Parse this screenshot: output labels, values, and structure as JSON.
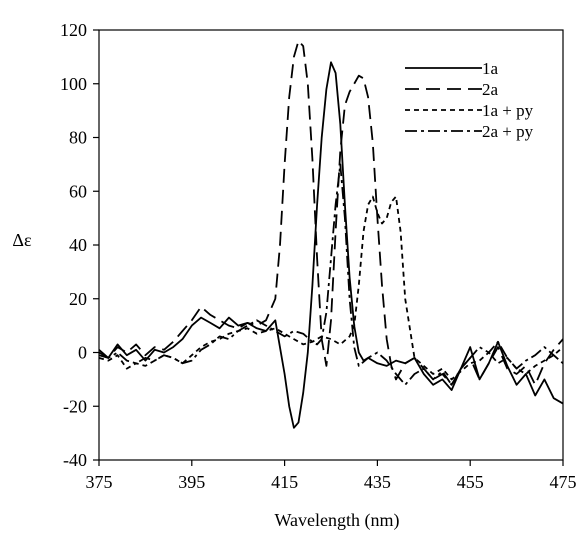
{
  "chart_data": {
    "type": "line",
    "title": "",
    "xlabel": "Wavelength (nm)",
    "ylabel": "Δε",
    "xlim": [
      375,
      475
    ],
    "ylim": [
      -40,
      120
    ],
    "xticks": [
      375,
      395,
      415,
      435,
      455,
      475
    ],
    "xtick_labels": [
      "375",
      "395",
      "415",
      "435",
      "455",
      "475"
    ],
    "yticks": [
      -40,
      -20,
      0,
      20,
      40,
      60,
      80,
      100,
      120
    ],
    "ytick_labels": [
      "-40",
      "-20",
      "0",
      "20",
      "40",
      "60",
      "80",
      "100",
      "120"
    ],
    "grid": false,
    "legend_position": "top-right",
    "series": [
      {
        "name": "1a",
        "dash": "",
        "x": [
          375,
          377,
          379,
          381,
          383,
          385,
          387,
          389,
          391,
          393,
          395,
          397,
          399,
          401,
          403,
          405,
          407,
          409,
          411,
          413,
          415,
          416,
          417,
          418,
          419,
          420,
          421,
          422,
          423,
          424,
          425,
          426,
          427,
          428,
          429,
          430,
          431,
          432,
          433,
          435,
          437,
          439,
          441,
          443,
          445,
          447,
          449,
          451,
          453,
          455,
          457,
          459,
          461,
          463,
          465,
          467,
          469,
          471,
          473,
          475
        ],
        "y": [
          0,
          -2,
          3,
          -1,
          1,
          -3,
          1,
          0,
          2,
          5,
          10,
          13,
          11,
          9,
          13,
          10,
          11,
          9,
          8,
          12,
          -8,
          -20,
          -28,
          -26,
          -15,
          0,
          25,
          55,
          80,
          98,
          108,
          104,
          85,
          55,
          28,
          10,
          0,
          -3,
          -2,
          -4,
          -5,
          -3,
          -4,
          -2,
          -8,
          -12,
          -10,
          -14,
          -6,
          2,
          -10,
          -4,
          4,
          -5,
          -12,
          -8,
          -16,
          -10,
          -17,
          -19
        ]
      },
      {
        "name": "2a",
        "dash": "14 7",
        "x": [
          375,
          377,
          379,
          381,
          383,
          385,
          387,
          389,
          391,
          393,
          395,
          397,
          399,
          401,
          403,
          405,
          407,
          409,
          411,
          413,
          414,
          415,
          416,
          417,
          418,
          419,
          420,
          421,
          422,
          423,
          424,
          425,
          426,
          427,
          428,
          429,
          430,
          431,
          432,
          433,
          434,
          435,
          436,
          437,
          438,
          439,
          441,
          443,
          445,
          447,
          449,
          451,
          453,
          455,
          457,
          459,
          461,
          463,
          465,
          467,
          469,
          471,
          473,
          475
        ],
        "y": [
          1,
          -2,
          2,
          0,
          3,
          -1,
          2,
          1,
          4,
          8,
          12,
          17,
          14,
          12,
          10,
          9,
          11,
          10,
          12,
          20,
          40,
          70,
          95,
          110,
          116,
          114,
          100,
          72,
          35,
          5,
          -5,
          12,
          45,
          75,
          92,
          97,
          100,
          103,
          102,
          95,
          78,
          50,
          25,
          5,
          -5,
          -10,
          -4,
          -2,
          -6,
          -10,
          -8,
          -12,
          -6,
          -2,
          -10,
          -4,
          2,
          -6,
          -8,
          -5,
          -12,
          -4,
          1,
          5
        ]
      },
      {
        "name": "1a + py",
        "dash": "5 4",
        "x": [
          375,
          377,
          379,
          381,
          383,
          385,
          387,
          389,
          391,
          393,
          395,
          397,
          399,
          401,
          403,
          405,
          407,
          409,
          411,
          413,
          415,
          417,
          419,
          421,
          423,
          425,
          427,
          429,
          430,
          431,
          432,
          433,
          434,
          435,
          436,
          437,
          438,
          439,
          440,
          441,
          443,
          445,
          447,
          449,
          451,
          453,
          455,
          457,
          459,
          461,
          463,
          465,
          467,
          469,
          471,
          473,
          475
        ],
        "y": [
          -2,
          -3,
          -1,
          -6,
          -4,
          -5,
          -3,
          -1,
          -2,
          -4,
          -1,
          2,
          4,
          5,
          7,
          8,
          9,
          7,
          8,
          9,
          7,
          5,
          3,
          4,
          6,
          5,
          3,
          6,
          10,
          25,
          45,
          55,
          58,
          52,
          48,
          50,
          56,
          58,
          45,
          20,
          -2,
          -5,
          -8,
          -6,
          -10,
          -7,
          -4,
          -3,
          0,
          -4,
          -2,
          -6,
          -8,
          -5,
          -3,
          -1,
          2
        ]
      },
      {
        "name": "2a + py",
        "dash": "12 4 3 4",
        "x": [
          375,
          377,
          379,
          381,
          383,
          385,
          387,
          389,
          391,
          393,
          395,
          397,
          399,
          401,
          403,
          405,
          407,
          409,
          411,
          413,
          415,
          417,
          419,
          421,
          422,
          423,
          424,
          425,
          426,
          427,
          428,
          429,
          430,
          431,
          433,
          435,
          437,
          439,
          441,
          443,
          445,
          447,
          449,
          451,
          453,
          455,
          457,
          459,
          461,
          463,
          465,
          467,
          469,
          471,
          473,
          475
        ],
        "y": [
          -1,
          -2,
          0,
          -3,
          -4,
          -2,
          -3,
          -1,
          -2,
          -4,
          -3,
          1,
          3,
          6,
          5,
          8,
          10,
          12,
          10,
          8,
          6,
          8,
          7,
          4,
          3,
          5,
          15,
          35,
          55,
          70,
          50,
          20,
          2,
          -5,
          -2,
          0,
          -3,
          -8,
          -12,
          -8,
          -6,
          -10,
          -7,
          -12,
          -6,
          -2,
          2,
          0,
          4,
          -2,
          -6,
          -3,
          -1,
          2,
          -1,
          -4
        ]
      }
    ]
  }
}
